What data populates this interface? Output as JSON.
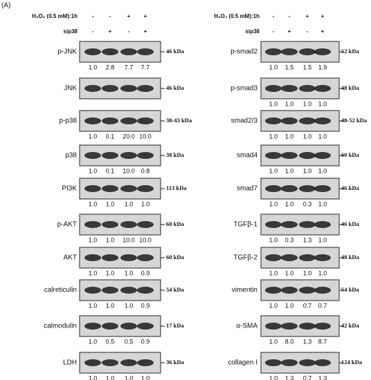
{
  "figure_label": "(A)",
  "left": {
    "header": {
      "treatment": "H₂O₂ (0.5 mM):1h",
      "treatment_signs": [
        "-",
        "-",
        "+",
        "+"
      ],
      "sirna": "sip38",
      "sirna_signs": [
        "-",
        "+",
        "-",
        "+"
      ]
    },
    "panels": [
      {
        "label": "p-JNK",
        "kda": "46 kDa",
        "values": [
          "1.0",
          "2.8",
          "7.7",
          "7.7"
        ]
      },
      {
        "label": "JNK",
        "kda": "46 kDa"
      },
      {
        "label": "p-p38",
        "kda": "38-43 kDa",
        "values": [
          "1.0",
          "0.1",
          "20.0",
          "10.0"
        ]
      },
      {
        "label": "p38",
        "kda": "38 kDa",
        "values": [
          "1.0",
          "0.1",
          "10.0",
          "0.8"
        ]
      },
      {
        "label": "PI3K",
        "kda": "113 kDa",
        "values": [
          "1.0",
          "1.0",
          "1.0",
          "1.0"
        ]
      },
      {
        "label": "p-AKT",
        "kda": "60 kDa",
        "values": [
          "1.0",
          "1.0",
          "10.0",
          "10.0"
        ]
      },
      {
        "label": "AKT",
        "kda": "60 kDa",
        "values": [
          "1.0",
          "1.0",
          "1.0",
          "0.9"
        ]
      },
      {
        "label": "calreticulin",
        "kda": "54 kDa",
        "values": [
          "1.0",
          "1.0",
          "1.0",
          "0.9"
        ]
      },
      {
        "label": "calmodulin",
        "kda": "17 kDa",
        "values": [
          "1.0",
          "0.5",
          "0.5",
          "0.9"
        ]
      },
      {
        "label": "LDH",
        "kda": "36 kDa",
        "values": [
          "1.0",
          "1.0",
          "1.0",
          "1.0"
        ]
      }
    ]
  },
  "right": {
    "header": {
      "treatment": "H₂O₂ (0.5 mM):1h",
      "treatment_signs": [
        "-",
        "-",
        "+",
        "+"
      ],
      "sirna": "sip38",
      "sirna_signs": [
        "-",
        "+",
        "-",
        "+"
      ]
    },
    "panels": [
      {
        "label": "p-smad2",
        "kda": "52 kDa",
        "values": [
          "1.0",
          "1.5",
          "1.5",
          "1.9"
        ]
      },
      {
        "label": "p-smad3",
        "kda": "48 kDa",
        "values": [
          "1.0",
          "1.0",
          "1.0",
          "1.0"
        ]
      },
      {
        "label": "smad2/3",
        "kda": "48-52 kDa",
        "values": [
          "1.0",
          "1.0",
          "1.0",
          "1.0"
        ]
      },
      {
        "label": "smad4",
        "kda": "60 kDa",
        "values": [
          "1.0",
          "1.0",
          "1.0",
          "1.0"
        ]
      },
      {
        "label": "smad7",
        "kda": "46 kDa",
        "values": [
          "1.0",
          "1.0",
          "0.3",
          "1.0"
        ]
      },
      {
        "label": "TGFβ-1",
        "kda": "46 kDa",
        "values": [
          "1.0",
          "0.3",
          "1.3",
          "1.0"
        ]
      },
      {
        "label": "TGFβ-2",
        "kda": "48 kDa",
        "values": [
          "1.0",
          "1.0",
          "1.0",
          "1.0"
        ]
      },
      {
        "label": "vimentin",
        "kda": "54 kDa",
        "values": [
          "1.0",
          "1.0",
          "0.7",
          "0.7"
        ]
      },
      {
        "label": "α-SMA",
        "kda": "42 kDa",
        "values": [
          "1.0",
          "8.0",
          "1.3",
          "8.7"
        ]
      },
      {
        "label": "collagen I",
        "kda": "124 kDa",
        "values": [
          "1.0",
          "1.3",
          "0.7",
          "1.3"
        ]
      }
    ]
  }
}
